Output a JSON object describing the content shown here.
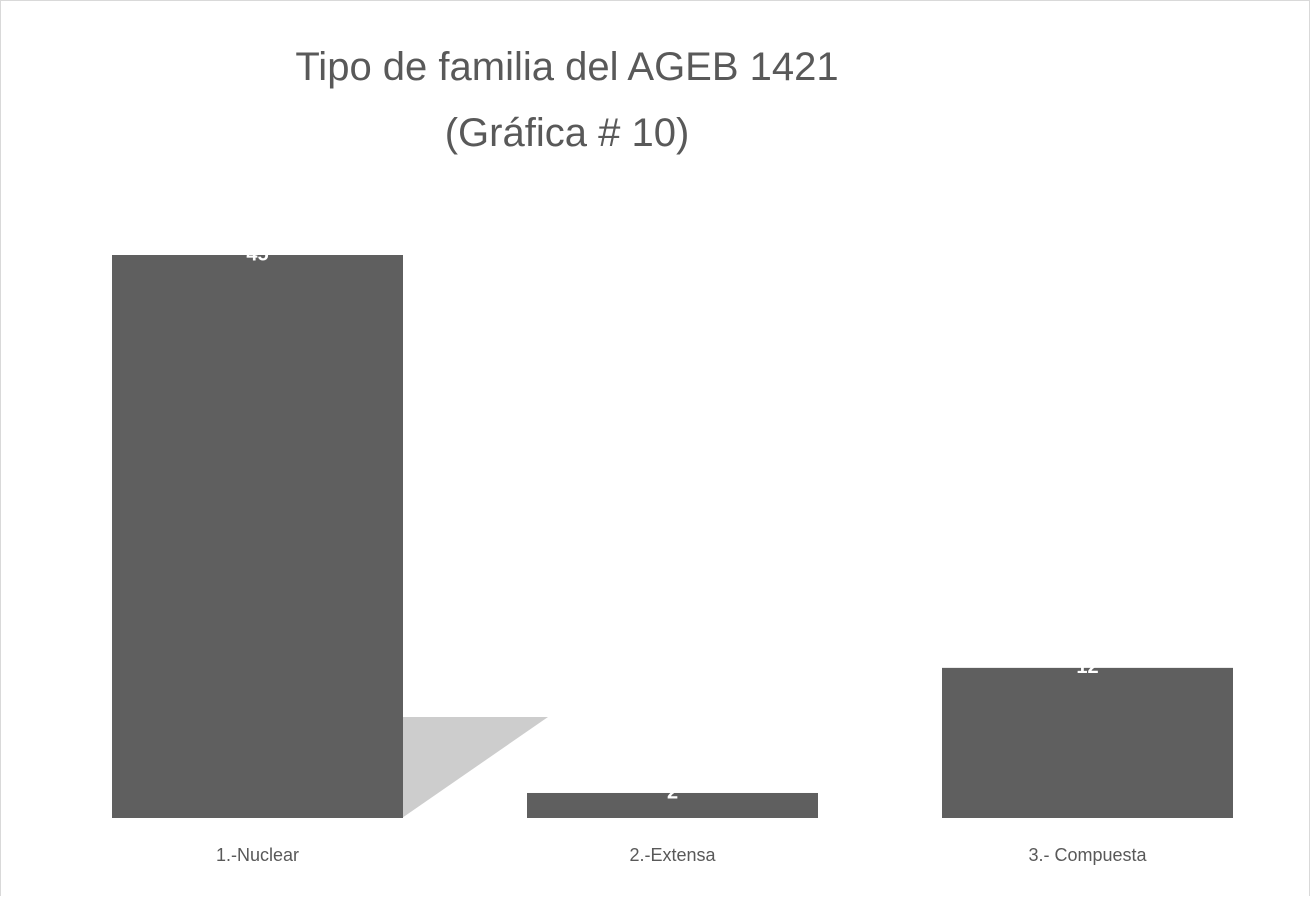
{
  "chart_data": {
    "type": "bar",
    "title": "Tipo de familia del AGEB 1421 (Gráfica # 10)",
    "categories": [
      "1.-Nuclear",
      "2.-Extensa",
      "3.- Compuesta"
    ],
    "values": [
      45,
      2,
      12
    ],
    "color": "#5f5f5f",
    "ylim": [
      0,
      45
    ]
  }
}
